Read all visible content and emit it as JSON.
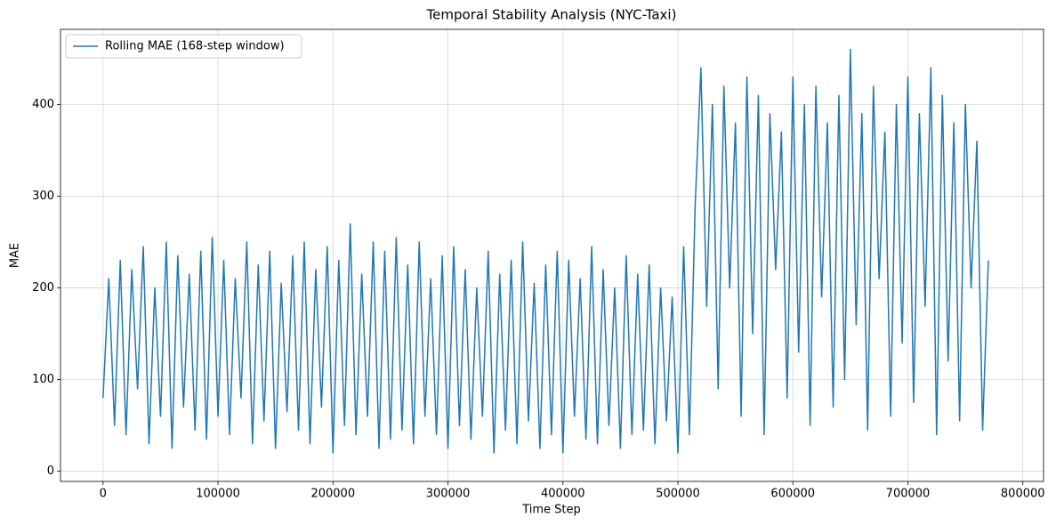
{
  "chart_data": {
    "type": "line",
    "title": "Temporal Stability Analysis (NYC-Taxi)",
    "x_label": "Time Step",
    "y_label": "MAE",
    "x": [
      0,
      5000,
      10000,
      15000,
      20000,
      25000,
      30000,
      35000,
      40000,
      45000,
      50000,
      55000,
      60000,
      65000,
      70000,
      75000,
      80000,
      85000,
      90000,
      95000,
      100000,
      105000,
      110000,
      115000,
      120000,
      125000,
      130000,
      135000,
      140000,
      145000,
      150000,
      155000,
      160000,
      165000,
      170000,
      175000,
      180000,
      185000,
      190000,
      195000,
      200000,
      205000,
      210000,
      215000,
      220000,
      225000,
      230000,
      235000,
      240000,
      245000,
      250000,
      255000,
      260000,
      265000,
      270000,
      275000,
      280000,
      285000,
      290000,
      295000,
      300000,
      305000,
      310000,
      315000,
      320000,
      325000,
      330000,
      335000,
      340000,
      345000,
      350000,
      355000,
      360000,
      365000,
      370000,
      375000,
      380000,
      385000,
      390000,
      395000,
      400000,
      405000,
      410000,
      415000,
      420000,
      425000,
      430000,
      435000,
      440000,
      445000,
      450000,
      455000,
      460000,
      465000,
      470000,
      475000,
      480000,
      485000,
      490000,
      495000,
      500000,
      505000,
      510000,
      515000,
      520000,
      525000,
      530000,
      535000,
      540000,
      545000,
      550000,
      555000,
      560000,
      565000,
      570000,
      575000,
      580000,
      585000,
      590000,
      595000,
      600000,
      605000,
      610000,
      615000,
      620000,
      625000,
      630000,
      635000,
      640000,
      645000,
      650000,
      655000,
      660000,
      665000,
      670000,
      675000,
      680000,
      685000,
      690000,
      695000,
      700000,
      705000,
      710000,
      715000,
      720000,
      725000,
      730000,
      735000,
      740000,
      745000,
      750000,
      755000,
      760000,
      765000,
      770000
    ],
    "series": [
      {
        "name": "Rolling MAE (168-step window)",
        "color": "#1f77b4",
        "values": [
          80,
          210,
          50,
          230,
          40,
          220,
          90,
          245,
          30,
          200,
          60,
          250,
          25,
          235,
          70,
          215,
          45,
          240,
          35,
          255,
          60,
          230,
          40,
          210,
          80,
          250,
          30,
          225,
          55,
          240,
          25,
          205,
          65,
          235,
          45,
          250,
          30,
          220,
          70,
          245,
          20,
          230,
          50,
          270,
          40,
          215,
          60,
          250,
          25,
          240,
          35,
          255,
          45,
          225,
          30,
          250,
          60,
          210,
          40,
          235,
          25,
          245,
          50,
          220,
          35,
          200,
          60,
          240,
          20,
          215,
          45,
          230,
          30,
          250,
          55,
          205,
          25,
          225,
          40,
          240,
          20,
          230,
          60,
          210,
          35,
          245,
          30,
          220,
          50,
          200,
          25,
          235,
          40,
          215,
          45,
          225,
          30,
          200,
          55,
          190,
          20,
          245,
          40,
          290,
          440,
          180,
          400,
          90,
          420,
          200,
          380,
          60,
          430,
          150,
          410,
          40,
          390,
          220,
          370,
          80,
          430,
          130,
          400,
          50,
          420,
          190,
          380,
          70,
          410,
          100,
          460,
          160,
          390,
          45,
          420,
          210,
          370,
          60,
          400,
          140,
          430,
          75,
          390,
          180,
          440,
          40,
          410,
          120,
          380,
          55,
          400,
          200,
          360,
          45,
          230
        ]
      }
    ],
    "xlim": [
      -37000,
      818000
    ],
    "ylim": [
      -11,
      482
    ],
    "xticks": [
      0,
      100000,
      200000,
      300000,
      400000,
      500000,
      600000,
      700000,
      800000
    ],
    "yticks": [
      0,
      100,
      200,
      300,
      400
    ],
    "grid": true,
    "legend": "upper left"
  }
}
